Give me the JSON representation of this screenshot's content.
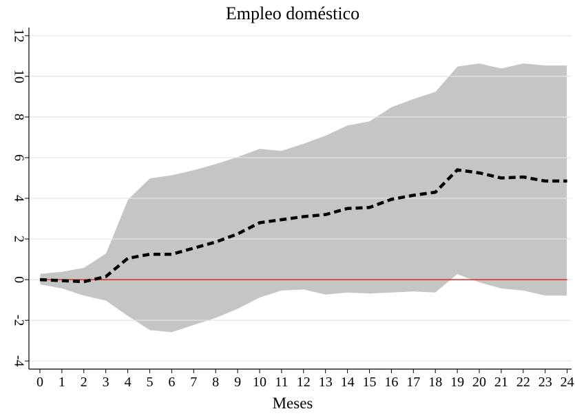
{
  "chart_data": {
    "type": "line",
    "title": "Empleo doméstico",
    "x_label": "Meses",
    "x": [
      0,
      1,
      2,
      3,
      4,
      5,
      6,
      7,
      8,
      9,
      10,
      11,
      12,
      13,
      14,
      15,
      16,
      17,
      18,
      19,
      20,
      21,
      22,
      23,
      24
    ],
    "values": [
      0,
      -0.05,
      -0.1,
      0.15,
      1.05,
      1.25,
      1.25,
      1.55,
      1.85,
      2.25,
      2.8,
      2.95,
      3.1,
      3.2,
      3.5,
      3.55,
      3.95,
      4.15,
      4.3,
      5.4,
      5.25,
      5.0,
      5.05,
      4.85,
      4.85
    ],
    "upper": [
      0.3,
      0.4,
      0.6,
      1.3,
      3.95,
      5.0,
      5.15,
      5.4,
      5.7,
      6.05,
      6.45,
      6.35,
      6.7,
      7.1,
      7.6,
      7.8,
      8.5,
      8.9,
      9.25,
      10.5,
      10.65,
      10.4,
      10.65,
      10.55,
      10.55
    ],
    "lower": [
      -0.25,
      -0.45,
      -0.8,
      -1.05,
      -1.8,
      -2.5,
      -2.6,
      -2.25,
      -1.9,
      -1.45,
      -0.9,
      -0.55,
      -0.5,
      -0.75,
      -0.65,
      -0.7,
      -0.65,
      -0.6,
      -0.65,
      0.25,
      -0.15,
      -0.45,
      -0.55,
      -0.8,
      -0.8
    ],
    "color": "#000000",
    "band_color": "#c4c5c5",
    "reference_line": 0,
    "reference_color": "#e8261c",
    "xlim": [
      -0.5,
      24.2
    ],
    "ylim": [
      -4.4,
      12.4
    ],
    "xticks": [
      0,
      1,
      2,
      3,
      4,
      5,
      6,
      7,
      8,
      9,
      10,
      11,
      12,
      13,
      14,
      15,
      16,
      17,
      18,
      19,
      20,
      21,
      22,
      23,
      24
    ],
    "yticks": [
      -4,
      -2,
      0,
      2,
      4,
      6,
      8,
      10,
      12
    ],
    "grid": true
  }
}
